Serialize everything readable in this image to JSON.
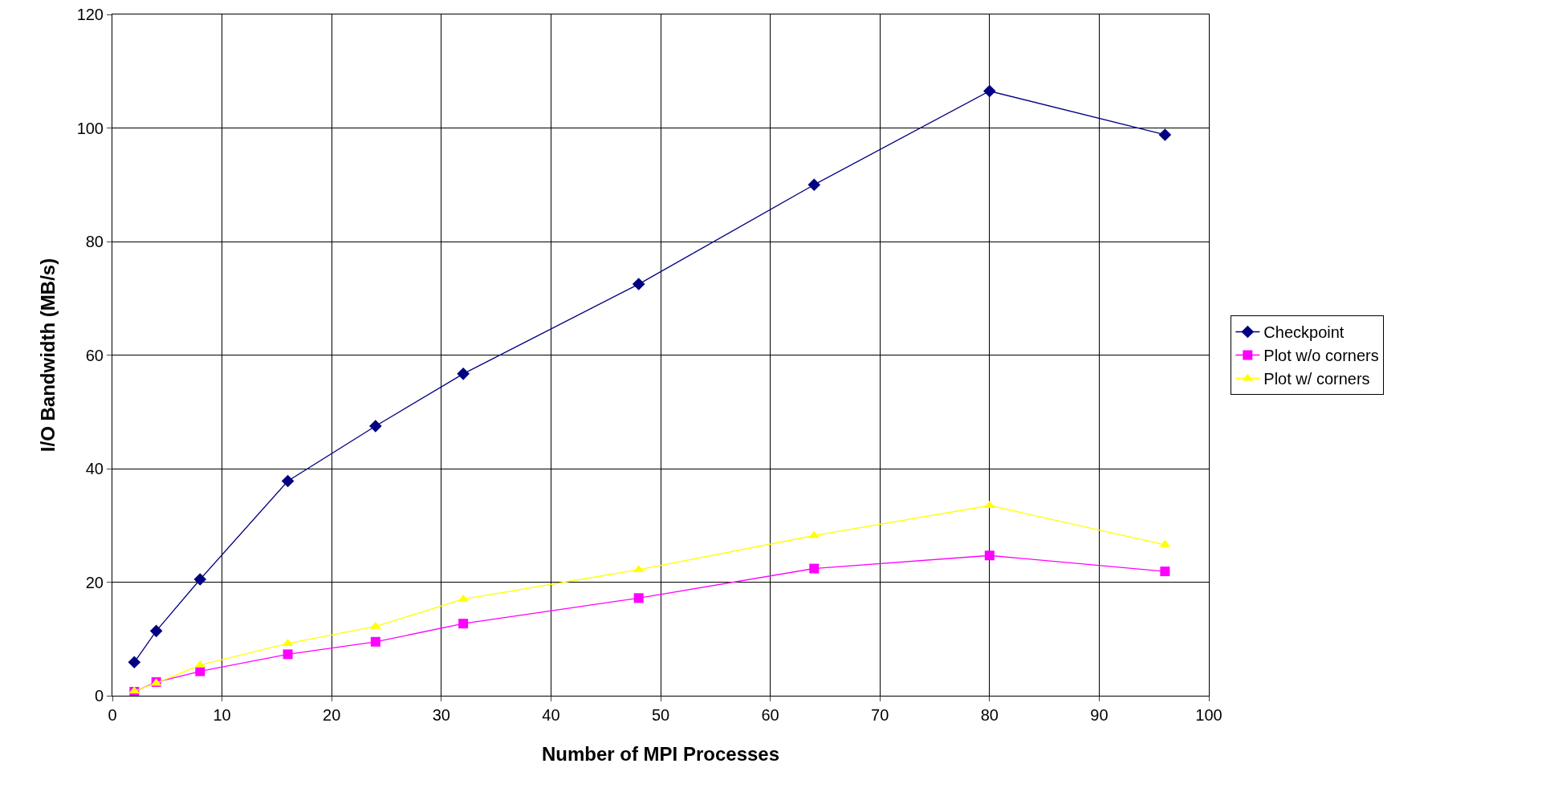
{
  "chart_data": {
    "type": "line",
    "xlabel": "Number of MPI Processes",
    "ylabel": "I/O Bandwidth (MB/s)",
    "x": [
      2,
      4,
      8,
      16,
      24,
      32,
      48,
      64,
      80,
      96
    ],
    "series": [
      {
        "name": "Checkpoint",
        "color": "#000080",
        "marker": "diamond",
        "values": [
          5.9,
          11.4,
          20.5,
          37.8,
          47.5,
          56.7,
          72.5,
          90,
          106.5,
          98.8
        ]
      },
      {
        "name": "Plot w/o corners",
        "color": "#ff00ff",
        "marker": "square",
        "values": [
          0.7,
          2.4,
          4.3,
          7.3,
          9.5,
          12.7,
          17.2,
          22.4,
          24.7,
          21.9
        ]
      },
      {
        "name": "Plot w/ corners",
        "color": "#ffff00",
        "marker": "triangle",
        "values": [
          0.8,
          2.2,
          5.4,
          9.2,
          12.2,
          17,
          22.2,
          28.2,
          33.5,
          26.6
        ]
      }
    ],
    "xlim": [
      0,
      100
    ],
    "xticks": [
      0,
      10,
      20,
      30,
      40,
      50,
      60,
      70,
      80,
      90,
      100
    ],
    "ylim": [
      0,
      120
    ],
    "yticks": [
      0,
      20,
      40,
      60,
      80,
      100,
      120
    ],
    "grid": true,
    "legend": "right",
    "line_style": "solid"
  }
}
